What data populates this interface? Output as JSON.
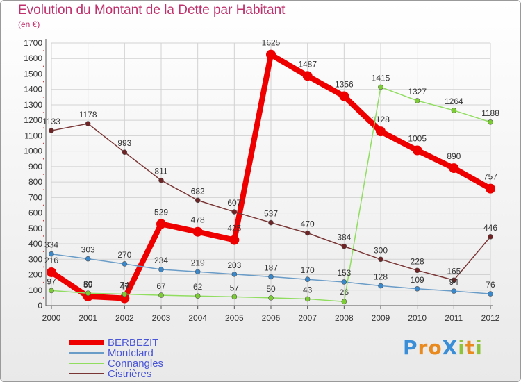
{
  "chart_data": {
    "type": "line",
    "title": "Evolution du Montant de la Dette par Habitant",
    "subtitle": "(en €)",
    "categories": [
      "2000",
      "2001",
      "2002",
      "2003",
      "2004",
      "2005",
      "2006",
      "2007",
      "2008",
      "2009",
      "2010",
      "2011",
      "2012"
    ],
    "ylim": [
      0,
      1700
    ],
    "yticks": [
      0,
      100,
      200,
      300,
      400,
      500,
      600,
      700,
      800,
      900,
      1000,
      1100,
      1200,
      1300,
      1400,
      1500,
      1600,
      1700
    ],
    "grid": true,
    "legend_position": "bottom-left",
    "series": [
      {
        "name": "BERBEZIT",
        "color": "#ee0000",
        "marker": "#ee0000",
        "values": [
          216,
          59,
          47,
          529,
          478,
          425,
          1625,
          1487,
          1356,
          1128,
          1005,
          890,
          757
        ],
        "labels": [
          "216",
          "59",
          "47",
          "529",
          "478",
          "425",
          "1625",
          "1487",
          "1356",
          "1128",
          "1005",
          "890",
          "757"
        ]
      },
      {
        "name": "Montclard",
        "color": "#6a9cc8",
        "marker": "#3a88cc",
        "values": [
          334,
          303,
          270,
          234,
          219,
          203,
          187,
          170,
          153,
          128,
          109,
          94,
          76
        ],
        "labels": [
          "334",
          "303",
          "270",
          "234",
          "219",
          "203",
          "187",
          "170",
          "153",
          "128",
          "109",
          "94",
          "76"
        ]
      },
      {
        "name": "Connangles",
        "color": "#90dd60",
        "marker": "#7ccc33",
        "values": [
          97,
          80,
          74,
          67,
          62,
          57,
          50,
          43,
          26,
          1415,
          1327,
          1264,
          1188
        ],
        "labels": [
          "97",
          "80",
          "74",
          "67",
          "62",
          "57",
          "50",
          "43",
          "26",
          "1415",
          "1327",
          "1264",
          "1188"
        ]
      },
      {
        "name": "Cistrières",
        "color": "#7a3535",
        "marker": "#6e2424",
        "values": [
          1133,
          1178,
          993,
          811,
          682,
          607,
          537,
          470,
          384,
          300,
          228,
          165,
          446
        ],
        "labels": [
          "1133",
          "1178",
          "993",
          "811",
          "682",
          "607",
          "537",
          "470",
          "384",
          "300",
          "228",
          "165",
          "446"
        ]
      }
    ]
  },
  "brand": {
    "text": "ProXiti",
    "letters": [
      {
        "ch": "P",
        "color": "#3a8ed8"
      },
      {
        "ch": "r",
        "color": "#e98a1e"
      },
      {
        "ch": "o",
        "color": "#e98a1e"
      },
      {
        "ch": "X",
        "color": "#3a8ed8"
      },
      {
        "ch": "i",
        "color": "#8fc43a"
      },
      {
        "ch": "t",
        "color": "#e98a1e"
      },
      {
        "ch": "i",
        "color": "#8fc43a"
      }
    ]
  }
}
